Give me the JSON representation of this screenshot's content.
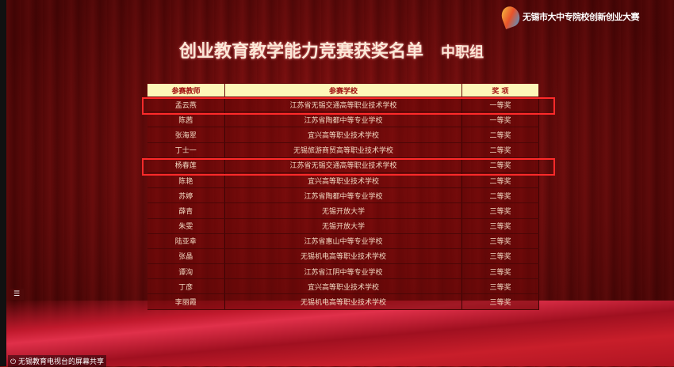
{
  "logo": {
    "text": "无锡市大中专院校创新创业大赛"
  },
  "title": "创业教育教学能力竞赛获奖名单",
  "group": "中职组",
  "table": {
    "headers": [
      "参赛教师",
      "参赛学校",
      "奖 项"
    ],
    "rows": [
      [
        "孟云燕",
        "江苏省无锡交通高等职业技术学校",
        "一等奖"
      ],
      [
        "陈茜",
        "江苏省陶都中等专业学校",
        "一等奖"
      ],
      [
        "张海翠",
        "宜兴高等职业技术学校",
        "二等奖"
      ],
      [
        "丁士一",
        "无锡旅游商贸高等职业技术学校",
        "二等奖"
      ],
      [
        "杨春莲",
        "江苏省无锡交通高等职业技术学校",
        "二等奖"
      ],
      [
        "陈艳",
        "宜兴高等职业技术学校",
        "二等奖"
      ],
      [
        "苏婷",
        "江苏省陶都中等专业学校",
        "二等奖"
      ],
      [
        "薛青",
        "无锡开放大学",
        "三等奖"
      ],
      [
        "朱雯",
        "无锡开放大学",
        "三等奖"
      ],
      [
        "陆亚幸",
        "江苏省惠山中等专业学校",
        "三等奖"
      ],
      [
        "张晶",
        "无锡机电高等职业技术学校",
        "三等奖"
      ],
      [
        "谭洵",
        "江苏省江阴中等专业学校",
        "三等奖"
      ],
      [
        "丁彦",
        "宜兴高等职业技术学校",
        "三等奖"
      ],
      [
        "李丽霞",
        "无锡机电高等职业技术学校",
        "三等奖"
      ]
    ]
  },
  "highlight_color": "#ff2a2a",
  "menu_icon": "☰",
  "share": {
    "icon": "screen-share-icon",
    "text": "无锡教育电视台的屏幕共享"
  }
}
